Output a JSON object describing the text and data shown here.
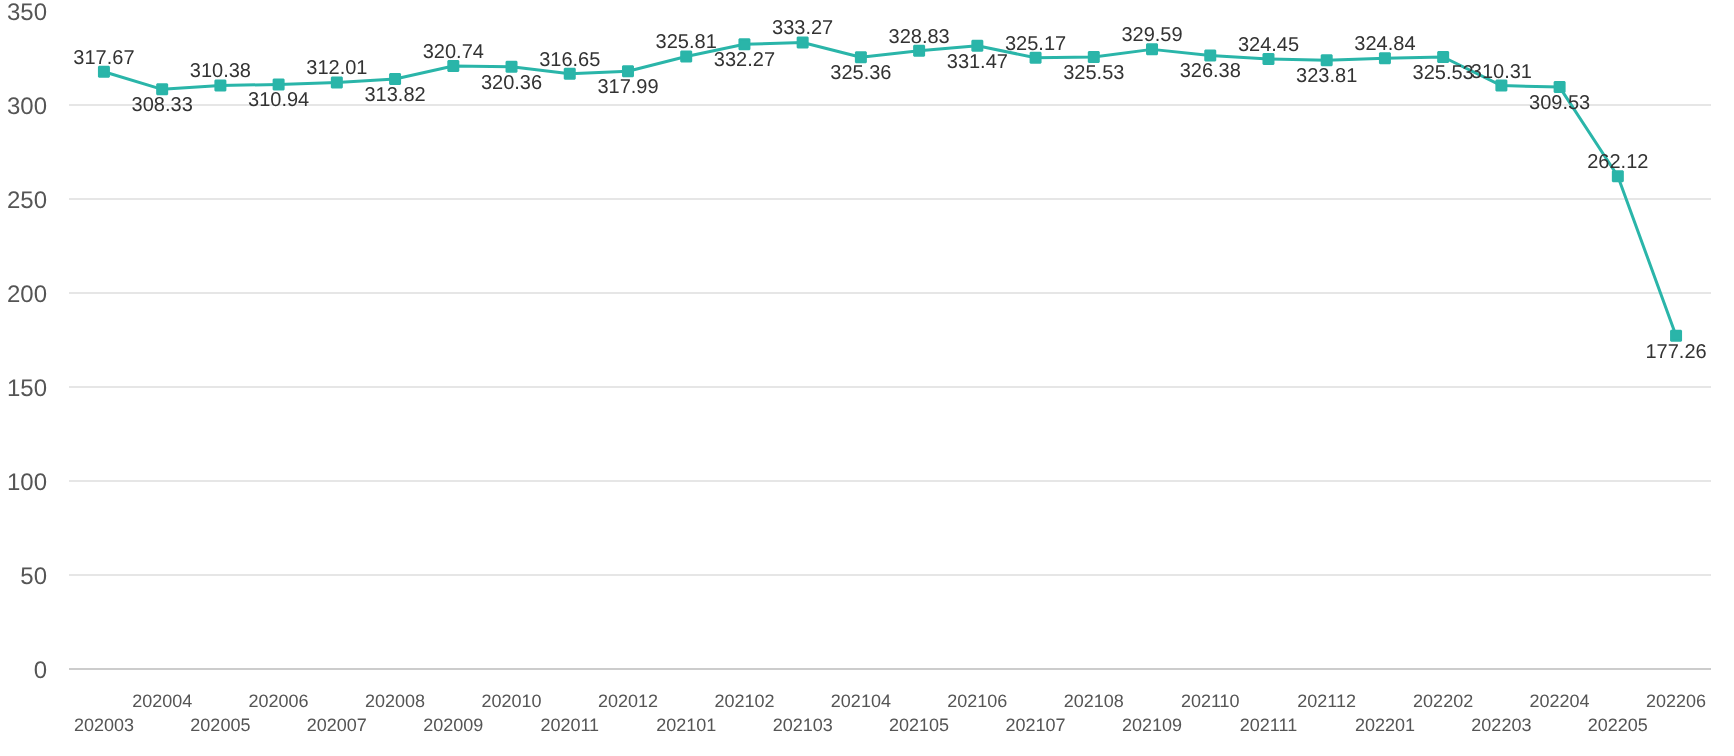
{
  "chart_data": {
    "type": "line",
    "categories": [
      "202003",
      "202004",
      "202005",
      "202006",
      "202007",
      "202008",
      "202009",
      "202010",
      "202011",
      "202012",
      "202101",
      "202102",
      "202103",
      "202104",
      "202105",
      "202106",
      "202107",
      "202108",
      "202109",
      "202110",
      "202111",
      "202112",
      "202201",
      "202202",
      "202203",
      "202204",
      "202205",
      "202206"
    ],
    "series": [
      {
        "color": "#2ab5a9",
        "values": [
          317.67,
          308.33,
          310.38,
          310.94,
          312.01,
          313.82,
          320.74,
          320.36,
          316.65,
          317.99,
          325.81,
          332.27,
          333.27,
          325.36,
          328.83,
          331.47,
          325.17,
          325.53,
          329.59,
          326.38,
          324.45,
          323.81,
          324.84,
          325.53,
          310.31,
          309.53,
          262.12,
          177.26
        ]
      }
    ],
    "ylim": [
      0,
      350
    ],
    "yticks": [
      0,
      50,
      100,
      150,
      200,
      250,
      300,
      350
    ],
    "grid": "y",
    "marker": "square",
    "line_style": "solid",
    "data_labels": true
  }
}
